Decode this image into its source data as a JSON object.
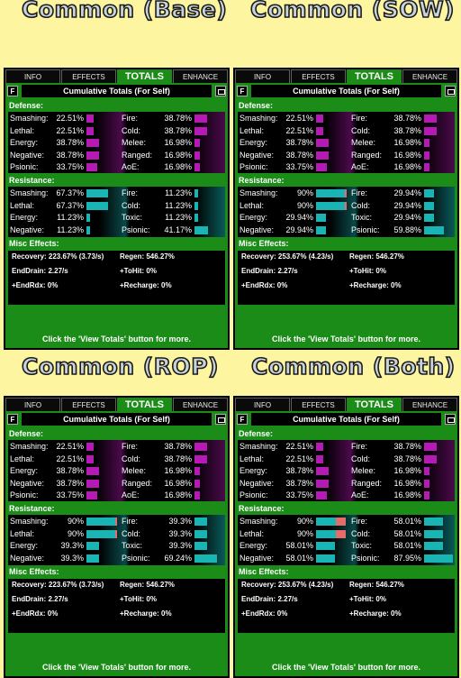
{
  "panels": [
    {
      "caption": "Common (Base)",
      "tabs": [
        "INFO",
        "EFFECTS",
        "TOTALS",
        "ENHANCE"
      ],
      "active_tab": 2,
      "f_label": "F",
      "title": "Cumulative Totals (For Self)",
      "defense_label": "Defense:",
      "defense": [
        {
          "left_label": "Smashing:",
          "left_value": "22.51%",
          "left_fill": 0.23,
          "right_label": "Fire:",
          "right_value": "38.78%",
          "right_fill": 0.39
        },
        {
          "left_label": "Lethal:",
          "left_value": "22.51%",
          "left_fill": 0.23,
          "right_label": "Cold:",
          "right_value": "38.78%",
          "right_fill": 0.39
        },
        {
          "left_label": "Energy:",
          "left_value": "38.78%",
          "left_fill": 0.39,
          "right_label": "Melee:",
          "right_value": "16.98%",
          "right_fill": 0.17
        },
        {
          "left_label": "Negative:",
          "left_value": "38.78%",
          "left_fill": 0.39,
          "right_label": "Ranged:",
          "right_value": "16.98%",
          "right_fill": 0.17
        },
        {
          "left_label": "Psionic:",
          "left_value": "33.75%",
          "left_fill": 0.34,
          "right_label": "AoE:",
          "right_value": "16.98%",
          "right_fill": 0.17
        }
      ],
      "resistance_label": "Resistance:",
      "resistance": [
        {
          "left_label": "Smashing:",
          "left_value": "67.37%",
          "left_fill": 0.67,
          "right_label": "Fire:",
          "right_value": "11.23%",
          "right_fill": 0.11
        },
        {
          "left_label": "Lethal:",
          "left_value": "67.37%",
          "left_fill": 0.67,
          "right_label": "Cold:",
          "right_value": "11.23%",
          "right_fill": 0.11
        },
        {
          "left_label": "Energy:",
          "left_value": "11.23%",
          "left_fill": 0.11,
          "right_label": "Toxic:",
          "right_value": "11.23%",
          "right_fill": 0.11
        },
        {
          "left_label": "Negative:",
          "left_value": "11.23%",
          "left_fill": 0.11,
          "right_label": "Psionic:",
          "right_value": "41.17%",
          "right_fill": 0.41
        }
      ],
      "misc_label": "Misc Effects:",
      "misc": {
        "recovery": "Recovery: 223.67% (3.73/s)",
        "regen": "Regen: 546.27%",
        "endDrain": "EndDrain: 2.27/s",
        "toHit": "+ToHit: 0%",
        "endRdx": "+EndRdx: 0%",
        "recharge": "+Recharge: 0%"
      },
      "footer": "Click the 'View Totals' button for more."
    },
    {
      "caption": "Common (SOW)",
      "tabs": [
        "INFO",
        "EFFECTS",
        "TOTALS",
        "ENHANCE"
      ],
      "active_tab": 2,
      "f_label": "F",
      "title": "Cumulative Totals (For Self)",
      "defense_label": "Defense:",
      "defense": [
        {
          "left_label": "Smashing:",
          "left_value": "22.51%",
          "left_fill": 0.23,
          "right_label": "Fire:",
          "right_value": "38.78%",
          "right_fill": 0.39
        },
        {
          "left_label": "Lethal:",
          "left_value": "22.51%",
          "left_fill": 0.23,
          "right_label": "Cold:",
          "right_value": "38.78%",
          "right_fill": 0.39
        },
        {
          "left_label": "Energy:",
          "left_value": "38.78%",
          "left_fill": 0.39,
          "right_label": "Melee:",
          "right_value": "16.98%",
          "right_fill": 0.17
        },
        {
          "left_label": "Negative:",
          "left_value": "38.78%",
          "left_fill": 0.39,
          "right_label": "Ranged:",
          "right_value": "16.98%",
          "right_fill": 0.17
        },
        {
          "left_label": "Psionic:",
          "left_value": "33.75%",
          "left_fill": 0.34,
          "right_label": "AoE:",
          "right_value": "16.98%",
          "right_fill": 0.17
        }
      ],
      "resistance_label": "Resistance:",
      "resistance": [
        {
          "left_label": "Smashing:",
          "left_value": "90%",
          "left_fill": 0.9,
          "left_over": 0.05,
          "right_label": "Fire:",
          "right_value": "29.94%",
          "right_fill": 0.3
        },
        {
          "left_label": "Lethal:",
          "left_value": "90%",
          "left_fill": 0.9,
          "left_over": 0.05,
          "right_label": "Cold:",
          "right_value": "29.94%",
          "right_fill": 0.3
        },
        {
          "left_label": "Energy:",
          "left_value": "29.94%",
          "left_fill": 0.3,
          "right_label": "Toxic:",
          "right_value": "29.94%",
          "right_fill": 0.3
        },
        {
          "left_label": "Negative:",
          "left_value": "29.94%",
          "left_fill": 0.3,
          "right_label": "Psionic:",
          "right_value": "59.88%",
          "right_fill": 0.6
        }
      ],
      "misc_label": "Misc Effects:",
      "misc": {
        "recovery": "Recovery: 253.67% (4.23/s)",
        "regen": "Regen: 546.27%",
        "endDrain": "EndDrain: 2.27/s",
        "toHit": "+ToHit: 0%",
        "endRdx": "+EndRdx: 0%",
        "recharge": "+Recharge: 0%"
      },
      "footer": "Click the 'View Totals' button for more."
    },
    {
      "caption": "Common (ROP)",
      "tabs": [
        "INFO",
        "EFFECTS",
        "TOTALS",
        "ENHANCE"
      ],
      "active_tab": 2,
      "f_label": "F",
      "title": "Cumulative Totals (For Self)",
      "defense_label": "Defense:",
      "defense": [
        {
          "left_label": "Smashing:",
          "left_value": "22.51%",
          "left_fill": 0.23,
          "right_label": "Fire:",
          "right_value": "38.78%",
          "right_fill": 0.39
        },
        {
          "left_label": "Lethal:",
          "left_value": "22.51%",
          "left_fill": 0.23,
          "right_label": "Cold:",
          "right_value": "38.78%",
          "right_fill": 0.39
        },
        {
          "left_label": "Energy:",
          "left_value": "38.78%",
          "left_fill": 0.39,
          "right_label": "Melee:",
          "right_value": "16.98%",
          "right_fill": 0.17
        },
        {
          "left_label": "Negative:",
          "left_value": "38.78%",
          "left_fill": 0.39,
          "right_label": "Ranged:",
          "right_value": "16.98%",
          "right_fill": 0.17
        },
        {
          "left_label": "Psionic:",
          "left_value": "33.75%",
          "left_fill": 0.34,
          "right_label": "AoE:",
          "right_value": "16.98%",
          "right_fill": 0.17
        }
      ],
      "resistance_label": "Resistance:",
      "resistance": [
        {
          "left_label": "Smashing:",
          "left_value": "90%",
          "left_fill": 0.9,
          "left_over": 0.03,
          "right_label": "Fire:",
          "right_value": "39.3%",
          "right_fill": 0.39
        },
        {
          "left_label": "Lethal:",
          "left_value": "90%",
          "left_fill": 0.9,
          "left_over": 0.03,
          "right_label": "Cold:",
          "right_value": "39.3%",
          "right_fill": 0.39
        },
        {
          "left_label": "Energy:",
          "left_value": "39.3%",
          "left_fill": 0.39,
          "right_label": "Toxic:",
          "right_value": "39.3%",
          "right_fill": 0.39
        },
        {
          "left_label": "Negative:",
          "left_value": "39.3%",
          "left_fill": 0.39,
          "right_label": "Psionic:",
          "right_value": "69.24%",
          "right_fill": 0.69
        }
      ],
      "misc_label": "Misc Effects:",
      "misc": {
        "recovery": "Recovery: 223.67% (3.73/s)",
        "regen": "Regen: 546.27%",
        "endDrain": "EndDrain: 2.27/s",
        "toHit": "+ToHit: 0%",
        "endRdx": "+EndRdx: 0%",
        "recharge": "+Recharge: 0%"
      },
      "footer": "Click the 'View Totals' button for more."
    },
    {
      "caption": "Common (Both)",
      "tabs": [
        "INFO",
        "EFFECTS",
        "TOTALS",
        "ENHANCE"
      ],
      "active_tab": 2,
      "f_label": "F",
      "title": "Cumulative Totals (For Self)",
      "defense_label": "Defense:",
      "defense": [
        {
          "left_label": "Smashing:",
          "left_value": "22.51%",
          "left_fill": 0.23,
          "right_label": "Fire:",
          "right_value": "38.78%",
          "right_fill": 0.39
        },
        {
          "left_label": "Lethal:",
          "left_value": "22.51%",
          "left_fill": 0.23,
          "right_label": "Cold:",
          "right_value": "38.78%",
          "right_fill": 0.39
        },
        {
          "left_label": "Energy:",
          "left_value": "38.78%",
          "left_fill": 0.39,
          "right_label": "Melee:",
          "right_value": "16.98%",
          "right_fill": 0.17
        },
        {
          "left_label": "Negative:",
          "left_value": "38.78%",
          "left_fill": 0.39,
          "right_label": "Ranged:",
          "right_value": "16.98%",
          "right_fill": 0.17
        },
        {
          "left_label": "Psionic:",
          "left_value": "33.75%",
          "left_fill": 0.34,
          "right_label": "AoE:",
          "right_value": "16.98%",
          "right_fill": 0.17
        }
      ],
      "resistance_label": "Resistance:",
      "resistance": [
        {
          "left_label": "Smashing:",
          "left_value": "90%",
          "left_fill": 0.6,
          "left_over": 0.3,
          "right_label": "Fire:",
          "right_value": "58.01%",
          "right_fill": 0.58
        },
        {
          "left_label": "Lethal:",
          "left_value": "90%",
          "left_fill": 0.6,
          "left_over": 0.3,
          "right_label": "Cold:",
          "right_value": "58.01%",
          "right_fill": 0.58
        },
        {
          "left_label": "Energy:",
          "left_value": "58.01%",
          "left_fill": 0.58,
          "right_label": "Toxic:",
          "right_value": "58.01%",
          "right_fill": 0.58
        },
        {
          "left_label": "Negative:",
          "left_value": "58.01%",
          "left_fill": 0.58,
          "right_label": "Psionic:",
          "right_value": "87.95%",
          "right_fill": 0.88
        }
      ],
      "misc_label": "Misc Effects:",
      "misc": {
        "recovery": "Recovery: 253.67% (4.23/s)",
        "regen": "Regen: 546.27%",
        "endDrain": "EndDrain: 2.27/s",
        "toHit": "+ToHit: 0%",
        "endRdx": "+EndRdx: 0%",
        "recharge": "+Recharge: 0%"
      },
      "footer": "Click the 'View Totals' button for more."
    }
  ],
  "colors": {
    "background": "#fdf5a0",
    "panel_green": "#1b8c18",
    "defense_bar": "#b51ab5",
    "resistance_bar": "#19b5b5",
    "over_cap": "#e66b6b"
  }
}
